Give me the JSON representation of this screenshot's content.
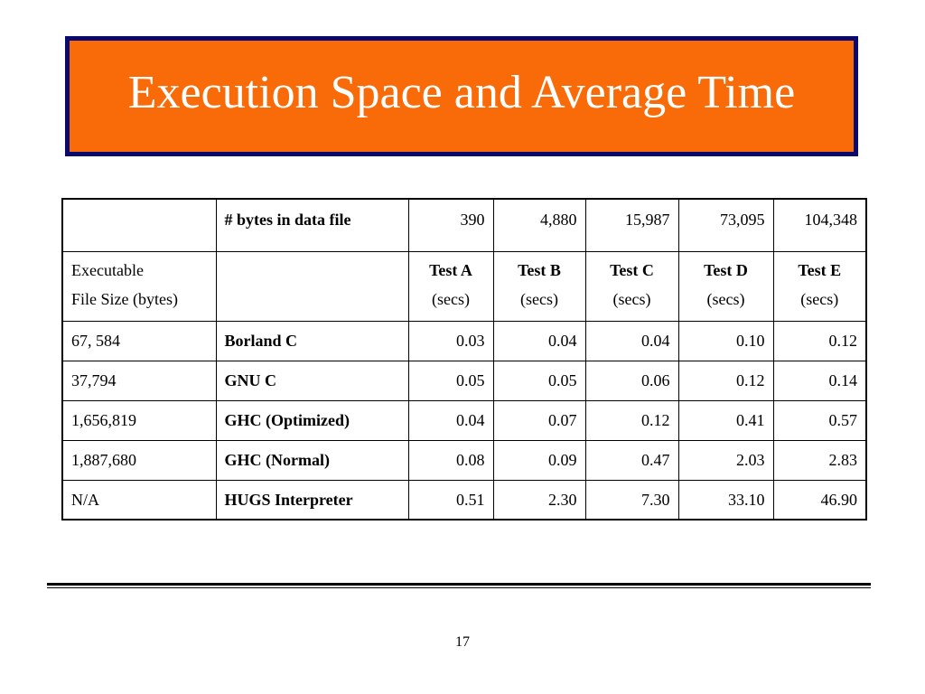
{
  "slide": {
    "title": "Execution Space and Average Time",
    "page_number": "17",
    "colors": {
      "title_background": "#f96b08",
      "title_border": "#0a0a6e",
      "title_text": "#ffffff"
    }
  },
  "table": {
    "header_row": {
      "col1": "",
      "col2": "# bytes in data file",
      "values": [
        "390",
        "4,880",
        "15,987",
        "73,095",
        "104,348"
      ]
    },
    "tests_row": {
      "col1_line1": "Executable",
      "col1_line2": "File Size (bytes)",
      "col2": "",
      "tests": [
        {
          "name": "Test A",
          "unit": "(secs)"
        },
        {
          "name": "Test B",
          "unit": "(secs)"
        },
        {
          "name": "Test C",
          "unit": "(secs)"
        },
        {
          "name": "Test D",
          "unit": "(secs)"
        },
        {
          "name": "Test E",
          "unit": "(secs)"
        }
      ]
    },
    "rows": [
      {
        "size": "67, 584",
        "compiler": "Borland C",
        "times": [
          "0.03",
          "0.04",
          "0.04",
          "0.10",
          "0.12"
        ]
      },
      {
        "size": "37,794",
        "compiler": "GNU C",
        "times": [
          "0.05",
          "0.05",
          "0.06",
          "0.12",
          "0.14"
        ]
      },
      {
        "size": "1,656,819",
        "compiler": "GHC (Optimized)",
        "times": [
          "0.04",
          "0.07",
          "0.12",
          "0.41",
          "0.57"
        ]
      },
      {
        "size": "1,887,680",
        "compiler": "GHC (Normal)",
        "times": [
          "0.08",
          "0.09",
          "0.47",
          "2.03",
          "2.83"
        ]
      },
      {
        "size": "N/A",
        "compiler": "HUGS Interpreter",
        "times": [
          "0.51",
          "2.30",
          "7.30",
          "33.10",
          "46.90"
        ]
      }
    ]
  }
}
